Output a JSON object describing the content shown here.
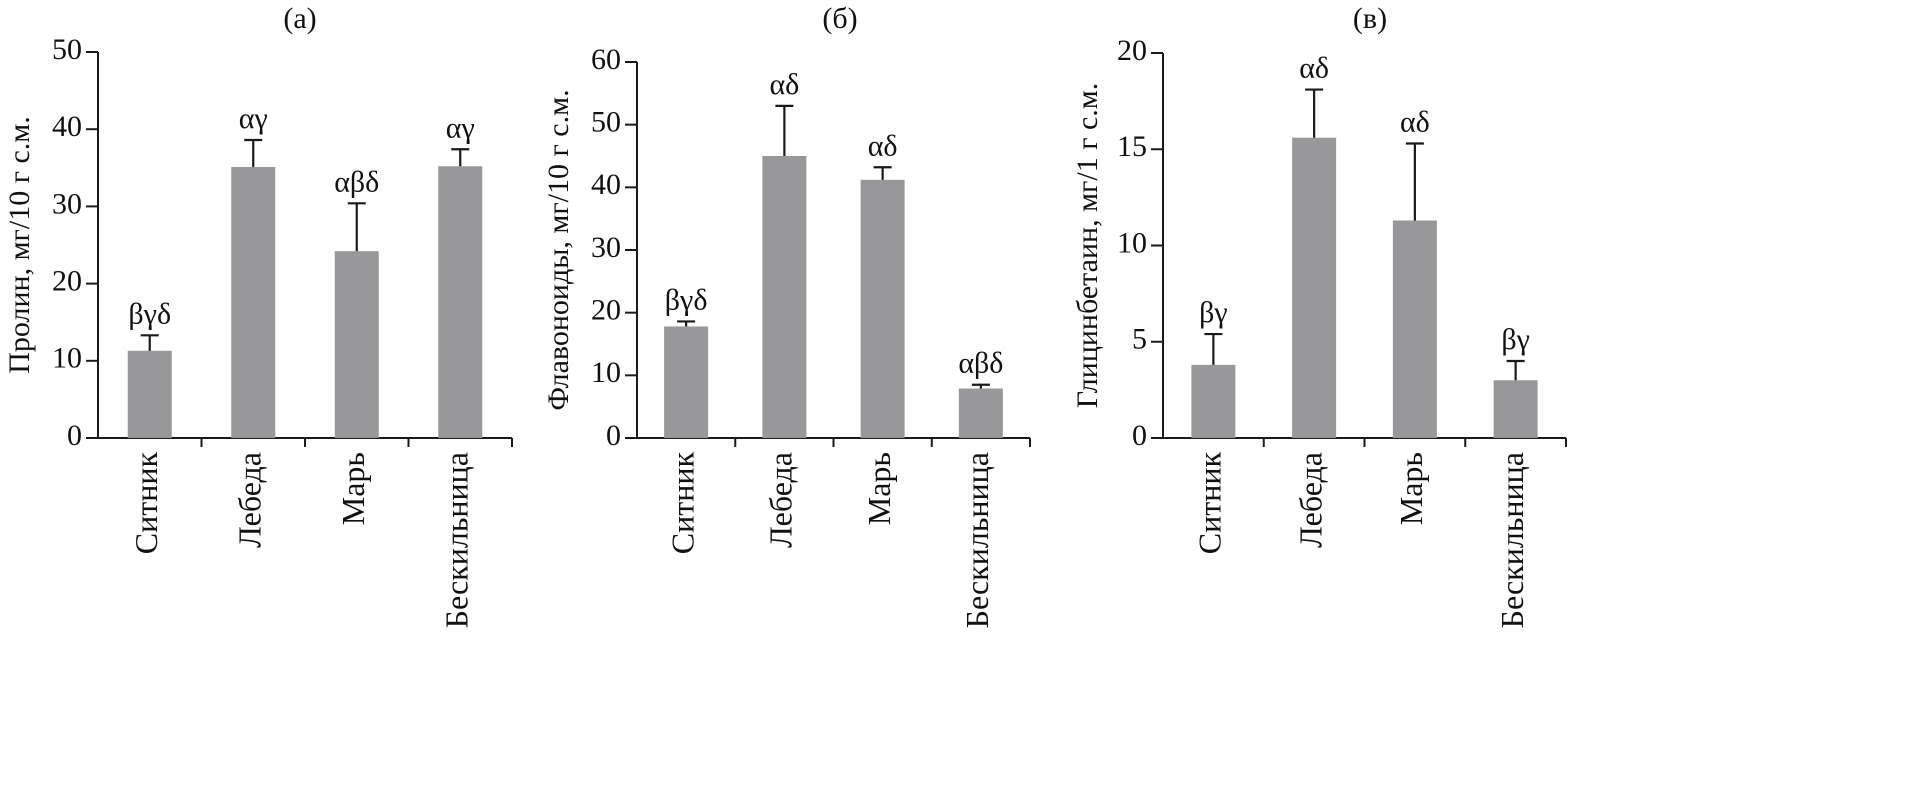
{
  "chart_data": [
    {
      "type": "bar",
      "title": "(а)",
      "ylabel": "Пролин, мг/10 г с.м.",
      "xlabel": "",
      "ylim": [
        0,
        50
      ],
      "yticks": [
        0,
        10,
        20,
        30,
        40,
        50
      ],
      "categories": [
        "Ситник",
        "Лебеда",
        "Марь",
        "Бескильница"
      ],
      "values": [
        11.3,
        35.1,
        24.2,
        35.2
      ],
      "errors": [
        2.0,
        3.5,
        6.2,
        2.2
      ],
      "annotations": [
        "βγδ",
        "αγ",
        "αβδ",
        "αγ"
      ],
      "bar_color": "#98989a"
    },
    {
      "type": "bar",
      "title": "(б)",
      "ylabel": "Флавоноиды, мг/10 г с.м.",
      "xlabel": "",
      "ylim": [
        0,
        60
      ],
      "yticks": [
        0,
        10,
        20,
        30,
        40,
        50,
        60
      ],
      "categories": [
        "Ситник",
        "Лебеда",
        "Марь",
        "Бескильница"
      ],
      "values": [
        17.8,
        45.0,
        41.2,
        7.9
      ],
      "errors": [
        0.8,
        8.0,
        2.0,
        0.6
      ],
      "annotations": [
        "βγδ",
        "αδ",
        "αδ",
        "αβδ"
      ],
      "bar_color": "#98989a"
    },
    {
      "type": "bar",
      "title": "(в)",
      "ylabel": "Глицинбетаин, мг/1 г с.м.",
      "xlabel": "",
      "ylim": [
        0,
        20
      ],
      "yticks": [
        0,
        5,
        10,
        15,
        20
      ],
      "categories": [
        "Ситник",
        "Лебеда",
        "Марь",
        "Бескильница"
      ],
      "values": [
        3.8,
        15.6,
        11.3,
        3.0
      ],
      "errors": [
        1.6,
        2.5,
        4.0,
        1.0
      ],
      "annotations": [
        "βγ",
        "αδ",
        "αδ",
        "βγ"
      ],
      "bar_color": "#98989a"
    }
  ]
}
